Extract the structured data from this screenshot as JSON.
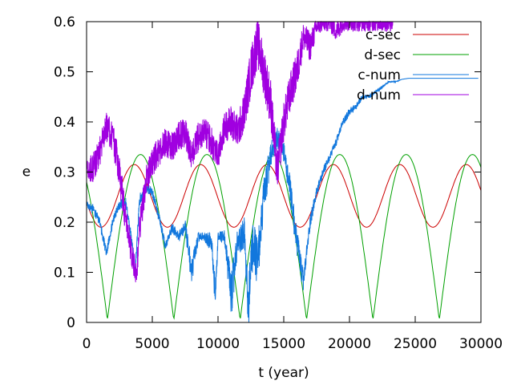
{
  "chart_data": {
    "type": "line",
    "title": "",
    "xlabel": "t (year)",
    "ylabel": "e",
    "xlim": [
      0,
      30000
    ],
    "ylim": [
      0,
      0.6
    ],
    "xticks": [
      0,
      5000,
      10000,
      15000,
      20000,
      25000,
      30000
    ],
    "yticks": [
      0,
      0.1,
      0.2,
      0.3,
      0.4,
      0.5,
      0.6
    ],
    "xtick_labels": [
      "0",
      "5000",
      "10000",
      "15000",
      "20000",
      "25000",
      "30000"
    ],
    "ytick_labels": [
      "0",
      "0.1",
      "0.2",
      "0.3",
      "0.4",
      "0.5",
      "0.6"
    ],
    "grid": false,
    "legend_position": "top-right",
    "series": [
      {
        "name": "c-sec",
        "color": "#cc0000",
        "kind": "oscillation",
        "min": 0.19,
        "max": 0.315,
        "period": 5050,
        "phase_start_at_max": false,
        "start_value": 0.24,
        "x_end": 30000
      },
      {
        "name": "d-sec",
        "color": "#00a000",
        "kind": "oscillation-abs",
        "min": 0.005,
        "max": 0.335,
        "period": 5050,
        "start_value": 0.28,
        "x_end": 30000
      },
      {
        "name": "c-num",
        "color": "#1177dd",
        "kind": "noisy",
        "x": [
          0,
          500,
          1000,
          1500,
          2000,
          2500,
          3000,
          3500,
          3700,
          4000,
          4500,
          5000,
          5500,
          6000,
          6500,
          7000,
          7500,
          8000,
          8500,
          9000,
          9500,
          9800,
          10000,
          10500,
          11000,
          11500,
          12000,
          12300,
          12600,
          13000,
          13500,
          14000,
          14500,
          15000,
          15500,
          16000,
          16500,
          17000,
          17500,
          18000,
          18500,
          19000,
          19500,
          20000,
          20500,
          21000,
          21500,
          22000,
          22500,
          23000,
          23500,
          24000,
          24500,
          25000,
          26000,
          27000,
          28000,
          29000,
          29800
        ],
        "y": [
          0.235,
          0.225,
          0.2,
          0.14,
          0.2,
          0.235,
          0.24,
          0.15,
          0.1,
          0.24,
          0.27,
          0.26,
          0.21,
          0.15,
          0.19,
          0.17,
          0.19,
          0.1,
          0.17,
          0.17,
          0.16,
          0.05,
          0.17,
          0.17,
          0.05,
          0.16,
          0.18,
          0.02,
          0.15,
          0.12,
          0.25,
          0.33,
          0.37,
          0.34,
          0.26,
          0.16,
          0.08,
          0.2,
          0.26,
          0.3,
          0.33,
          0.36,
          0.4,
          0.42,
          0.43,
          0.45,
          0.45,
          0.46,
          0.47,
          0.48,
          0.48,
          0.485,
          0.487,
          0.487,
          0.487,
          0.487,
          0.487,
          0.487,
          0.487
        ],
        "noise": [
          0.005,
          0.01,
          0.01,
          0.01,
          0.01,
          0.01,
          0.01,
          0.01,
          0.01,
          0.015,
          0.01,
          0.01,
          0.01,
          0.01,
          0.01,
          0.01,
          0.015,
          0.03,
          0.01,
          0.01,
          0.02,
          0.03,
          0.01,
          0.015,
          0.05,
          0.03,
          0.03,
          0.05,
          0.06,
          0.05,
          0.04,
          0.03,
          0.02,
          0.02,
          0.03,
          0.03,
          0.02,
          0.015,
          0.01,
          0.01,
          0.008,
          0.008,
          0.008,
          0.008,
          0.006,
          0.006,
          0.004,
          0.004,
          0.003,
          0.002,
          0.001,
          0,
          0,
          0,
          0,
          0,
          0,
          0,
          0
        ]
      },
      {
        "name": "d-num",
        "color": "#a000e0",
        "kind": "noisy",
        "x": [
          0,
          500,
          1000,
          1500,
          2000,
          2500,
          3000,
          3500,
          3800,
          4000,
          4500,
          5000,
          5500,
          6000,
          6500,
          7000,
          7500,
          8000,
          8500,
          9000,
          9500,
          10000,
          10500,
          11000,
          11500,
          12000,
          12500,
          13000,
          13500,
          14000,
          14500,
          15000,
          15500,
          16000,
          16500,
          17000,
          17500,
          18000,
          18500,
          19000,
          19500,
          20000,
          20500,
          21000,
          21500,
          22000,
          22500,
          23000,
          23300
        ],
        "y": [
          0.3,
          0.31,
          0.34,
          0.39,
          0.37,
          0.3,
          0.2,
          0.13,
          0.09,
          0.18,
          0.28,
          0.32,
          0.34,
          0.36,
          0.35,
          0.37,
          0.38,
          0.33,
          0.37,
          0.38,
          0.36,
          0.33,
          0.39,
          0.4,
          0.38,
          0.42,
          0.5,
          0.56,
          0.5,
          0.44,
          0.3,
          0.4,
          0.46,
          0.5,
          0.57,
          0.55,
          0.59,
          0.6,
          0.6,
          0.58,
          0.6,
          0.6,
          0.6,
          0.6,
          0.6,
          0.6,
          0.6,
          0.6,
          0.6
        ],
        "noise": [
          0.02,
          0.03,
          0.03,
          0.03,
          0.03,
          0.04,
          0.03,
          0.03,
          0.03,
          0.03,
          0.03,
          0.03,
          0.03,
          0.03,
          0.03,
          0.03,
          0.03,
          0.03,
          0.03,
          0.03,
          0.03,
          0.03,
          0.03,
          0.035,
          0.035,
          0.04,
          0.05,
          0.05,
          0.05,
          0.05,
          0.04,
          0.04,
          0.04,
          0.04,
          0.03,
          0.03,
          0.02,
          0.02,
          0.02,
          0.02,
          0.02,
          0.02,
          0.02,
          0.02,
          0.02,
          0.02,
          0.02,
          0.02,
          0.02
        ]
      }
    ]
  }
}
